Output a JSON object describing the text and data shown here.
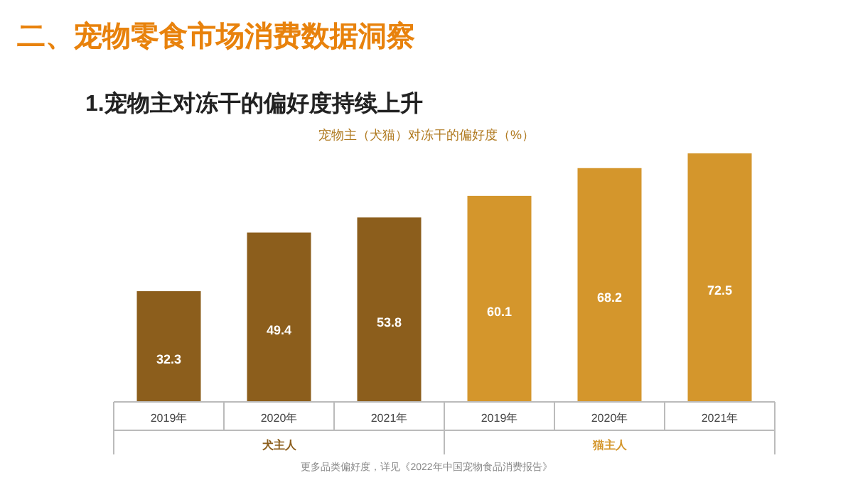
{
  "chart_data": {
    "type": "bar",
    "title": "宠物主（犬猫）对冻干的偏好度（%）",
    "subtitle": "1.宠物主对冻干的偏好度持续上升",
    "annotations": [
      "二、宠物零食市场消费数据洞察",
      "更多品类偏好度，详见《2022年中国宠物食品消费报告》"
    ],
    "categories": [
      "2019年",
      "2020年",
      "2021年",
      "2019年",
      "2020年",
      "2021年"
    ],
    "series": [
      {
        "name": "犬主人",
        "color": "#8c5e1c",
        "values": [
          32.3,
          49.4,
          53.8,
          null,
          null,
          null
        ]
      },
      {
        "name": "猫主人",
        "color": "#d4962c",
        "values": [
          null,
          null,
          null,
          60.1,
          68.2,
          72.5
        ]
      }
    ],
    "data_labels": true
  }
}
